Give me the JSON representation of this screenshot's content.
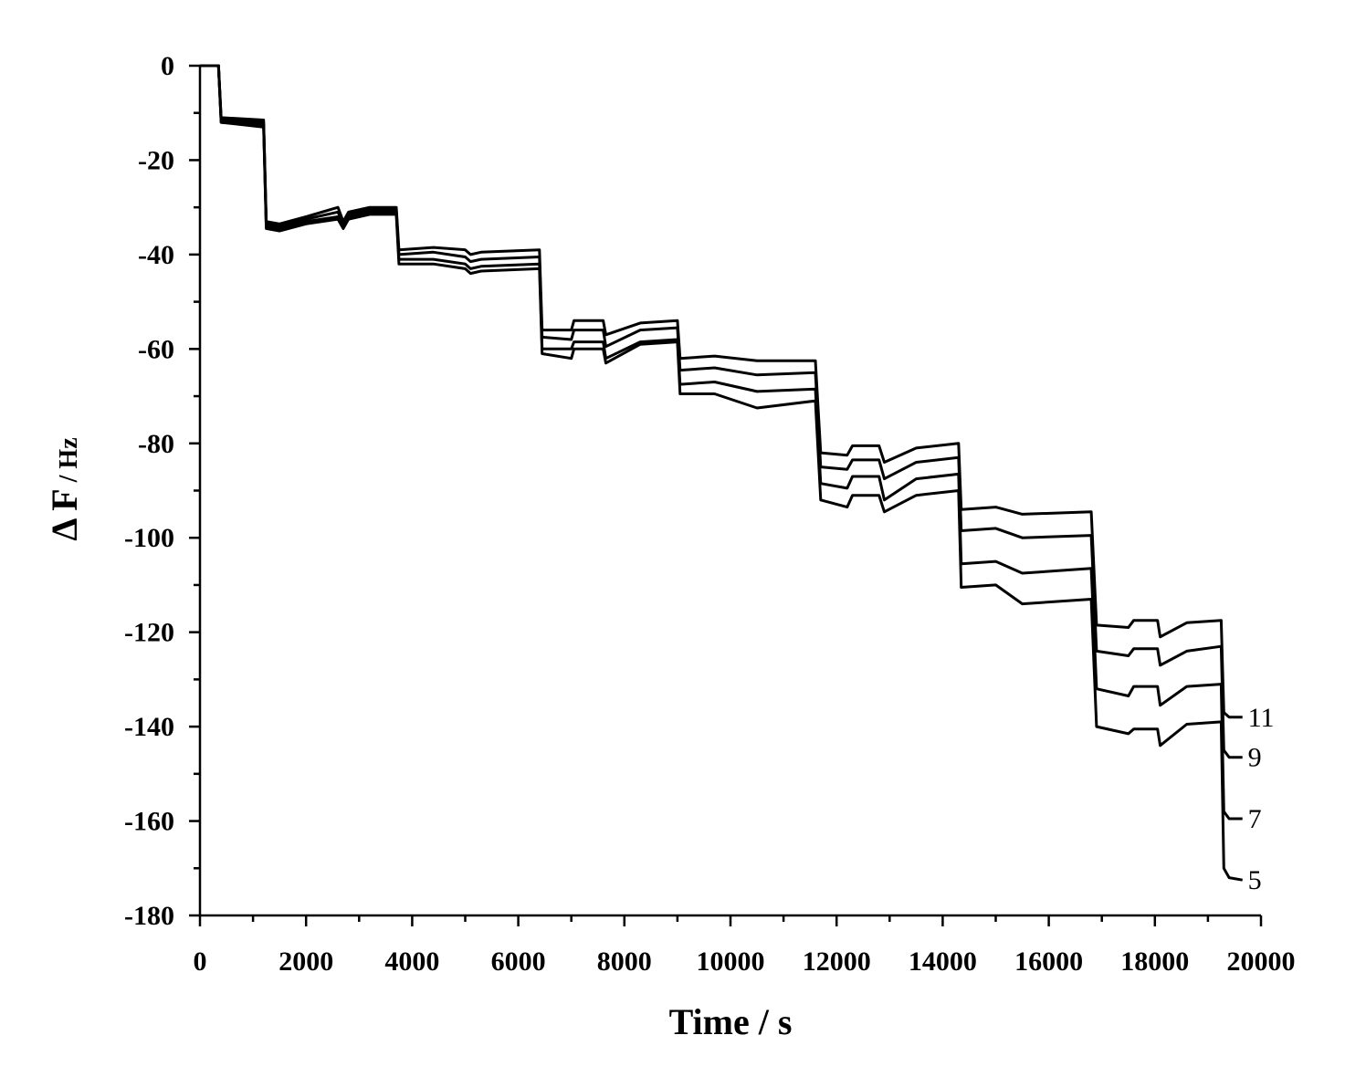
{
  "chart_data": {
    "type": "line",
    "title": "",
    "xlabel": "Time / s",
    "ylabel_main": "Δ F",
    "ylabel_unit": " / Hz",
    "xlim": [
      0,
      20000
    ],
    "ylim": [
      -180,
      0
    ],
    "xticks": [
      0,
      2000,
      4000,
      6000,
      8000,
      10000,
      12000,
      14000,
      16000,
      18000,
      20000
    ],
    "yticks": [
      0,
      -20,
      -40,
      -60,
      -80,
      -100,
      -120,
      -140,
      -160,
      -180
    ],
    "grid": false,
    "legend": "none (series labeled at right end)",
    "series": [
      {
        "name": "11",
        "points": [
          [
            0,
            0
          ],
          [
            300,
            0
          ],
          [
            350,
            0
          ],
          [
            400,
            -11
          ],
          [
            1200,
            -11.5
          ],
          [
            1250,
            -33
          ],
          [
            1500,
            -33.5
          ],
          [
            2000,
            -32
          ],
          [
            2600,
            -30
          ],
          [
            2700,
            -33
          ],
          [
            2800,
            -31
          ],
          [
            3200,
            -30
          ],
          [
            3700,
            -30
          ],
          [
            3750,
            -39
          ],
          [
            4400,
            -38.5
          ],
          [
            5000,
            -39
          ],
          [
            5100,
            -40
          ],
          [
            5300,
            -39.5
          ],
          [
            6400,
            -39
          ],
          [
            6450,
            -56
          ],
          [
            7000,
            -56
          ],
          [
            7050,
            -54
          ],
          [
            7600,
            -54
          ],
          [
            7650,
            -57
          ],
          [
            8300,
            -54.5
          ],
          [
            9000,
            -54
          ],
          [
            9050,
            -62
          ],
          [
            9700,
            -61.5
          ],
          [
            10500,
            -62.5
          ],
          [
            11600,
            -62.5
          ],
          [
            11700,
            -82
          ],
          [
            12200,
            -82.5
          ],
          [
            12300,
            -80.5
          ],
          [
            12800,
            -80.5
          ],
          [
            12900,
            -84
          ],
          [
            13500,
            -81
          ],
          [
            14300,
            -80
          ],
          [
            14350,
            -94
          ],
          [
            15000,
            -93.5
          ],
          [
            15500,
            -95
          ],
          [
            16800,
            -94.5
          ],
          [
            16900,
            -118.5
          ],
          [
            17500,
            -119
          ],
          [
            17600,
            -117.5
          ],
          [
            18050,
            -117.5
          ],
          [
            18100,
            -121
          ],
          [
            18600,
            -118
          ],
          [
            19250,
            -117.5
          ],
          [
            19300,
            -137
          ],
          [
            19400,
            -138
          ],
          [
            19650,
            -138
          ]
        ]
      },
      {
        "name": "9",
        "points": [
          [
            0,
            0
          ],
          [
            300,
            0
          ],
          [
            350,
            0
          ],
          [
            400,
            -11.5
          ],
          [
            1200,
            -12
          ],
          [
            1250,
            -33.5
          ],
          [
            1500,
            -34
          ],
          [
            2000,
            -32.5
          ],
          [
            2600,
            -31
          ],
          [
            2700,
            -33.5
          ],
          [
            2800,
            -31.5
          ],
          [
            3200,
            -30.5
          ],
          [
            3700,
            -30.5
          ],
          [
            3750,
            -40
          ],
          [
            4400,
            -39.5
          ],
          [
            5000,
            -40.5
          ],
          [
            5100,
            -41.5
          ],
          [
            5300,
            -41
          ],
          [
            6400,
            -40.5
          ],
          [
            6450,
            -57.5
          ],
          [
            7000,
            -58
          ],
          [
            7050,
            -56
          ],
          [
            7600,
            -56
          ],
          [
            7650,
            -59.5
          ],
          [
            8300,
            -56
          ],
          [
            9000,
            -55.5
          ],
          [
            9050,
            -64.5
          ],
          [
            9700,
            -64
          ],
          [
            10500,
            -65.5
          ],
          [
            11600,
            -65
          ],
          [
            11700,
            -85
          ],
          [
            12200,
            -85.5
          ],
          [
            12300,
            -83.5
          ],
          [
            12800,
            -83.5
          ],
          [
            12900,
            -87.5
          ],
          [
            13500,
            -84
          ],
          [
            14300,
            -83
          ],
          [
            14350,
            -98.5
          ],
          [
            15000,
            -98
          ],
          [
            15500,
            -100
          ],
          [
            16800,
            -99.5
          ],
          [
            16900,
            -124
          ],
          [
            17500,
            -125
          ],
          [
            17600,
            -123.5
          ],
          [
            18050,
            -123.5
          ],
          [
            18100,
            -127
          ],
          [
            18600,
            -124
          ],
          [
            19250,
            -123
          ],
          [
            19300,
            -145
          ],
          [
            19400,
            -146.5
          ],
          [
            19650,
            -146.5
          ]
        ]
      },
      {
        "name": "7",
        "points": [
          [
            0,
            0
          ],
          [
            300,
            0
          ],
          [
            350,
            0
          ],
          [
            400,
            -12
          ],
          [
            1200,
            -12.5
          ],
          [
            1250,
            -34
          ],
          [
            1500,
            -34.5
          ],
          [
            2000,
            -33
          ],
          [
            2600,
            -32
          ],
          [
            2700,
            -34
          ],
          [
            2800,
            -32
          ],
          [
            3200,
            -31
          ],
          [
            3700,
            -31
          ],
          [
            3750,
            -41
          ],
          [
            4400,
            -41
          ],
          [
            5000,
            -42
          ],
          [
            5100,
            -43
          ],
          [
            5300,
            -42.5
          ],
          [
            6400,
            -42
          ],
          [
            6450,
            -60
          ],
          [
            7000,
            -60
          ],
          [
            7050,
            -58.5
          ],
          [
            7600,
            -58.5
          ],
          [
            7650,
            -62
          ],
          [
            8300,
            -58.5
          ],
          [
            9000,
            -58
          ],
          [
            9050,
            -67.5
          ],
          [
            9700,
            -67
          ],
          [
            10500,
            -69
          ],
          [
            11600,
            -68.5
          ],
          [
            11700,
            -88.5
          ],
          [
            12200,
            -89.5
          ],
          [
            12300,
            -87
          ],
          [
            12800,
            -87
          ],
          [
            12900,
            -92
          ],
          [
            13500,
            -87.5
          ],
          [
            14300,
            -86.5
          ],
          [
            14350,
            -105.5
          ],
          [
            15000,
            -105
          ],
          [
            15500,
            -107.5
          ],
          [
            16800,
            -106.5
          ],
          [
            16900,
            -132
          ],
          [
            17500,
            -133.5
          ],
          [
            17600,
            -131.5
          ],
          [
            18050,
            -131.5
          ],
          [
            18100,
            -135.5
          ],
          [
            18600,
            -131.5
          ],
          [
            19250,
            -131
          ],
          [
            19300,
            -158
          ],
          [
            19400,
            -159.5
          ],
          [
            19650,
            -159.5
          ]
        ]
      },
      {
        "name": "5",
        "points": [
          [
            0,
            0
          ],
          [
            300,
            0
          ],
          [
            350,
            0
          ],
          [
            400,
            -12
          ],
          [
            1200,
            -13
          ],
          [
            1250,
            -34.5
          ],
          [
            1500,
            -35
          ],
          [
            2000,
            -33.5
          ],
          [
            2600,
            -32.5
          ],
          [
            2700,
            -34.5
          ],
          [
            2800,
            -32.5
          ],
          [
            3200,
            -31.5
          ],
          [
            3700,
            -31.5
          ],
          [
            3750,
            -42
          ],
          [
            4400,
            -42
          ],
          [
            5000,
            -43
          ],
          [
            5100,
            -44
          ],
          [
            5300,
            -43.5
          ],
          [
            6400,
            -43
          ],
          [
            6450,
            -61
          ],
          [
            7000,
            -62
          ],
          [
            7050,
            -60
          ],
          [
            7600,
            -60
          ],
          [
            7650,
            -63
          ],
          [
            8300,
            -59
          ],
          [
            9000,
            -58.5
          ],
          [
            9050,
            -69.5
          ],
          [
            9700,
            -69.5
          ],
          [
            10500,
            -72.5
          ],
          [
            11600,
            -71
          ],
          [
            11700,
            -92
          ],
          [
            12200,
            -93.5
          ],
          [
            12300,
            -91
          ],
          [
            12800,
            -91
          ],
          [
            12900,
            -94.5
          ],
          [
            13500,
            -91
          ],
          [
            14300,
            -90
          ],
          [
            14350,
            -110.5
          ],
          [
            15000,
            -110
          ],
          [
            15500,
            -114
          ],
          [
            16800,
            -113
          ],
          [
            16900,
            -140
          ],
          [
            17500,
            -141.5
          ],
          [
            17600,
            -140.5
          ],
          [
            18050,
            -140.5
          ],
          [
            18100,
            -144
          ],
          [
            18600,
            -139.5
          ],
          [
            19250,
            -139
          ],
          [
            19300,
            -170
          ],
          [
            19400,
            -172
          ],
          [
            19650,
            -172.5
          ]
        ]
      }
    ]
  }
}
